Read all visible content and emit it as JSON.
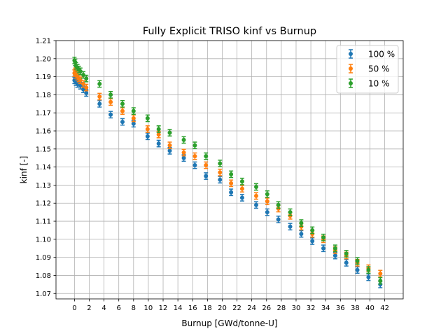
{
  "chart_data": {
    "type": "scatter",
    "title": "Fully Explicit TRISO kinf vs Burnup",
    "xlabel": "Burnup [GWd/tonne-U]",
    "ylabel": "kinf [-]",
    "xlim": [
      -2.5,
      44.5
    ],
    "ylim": [
      1.067,
      1.21
    ],
    "x_ticks": [
      0,
      2,
      4,
      6,
      8,
      10,
      12,
      14,
      16,
      18,
      20,
      22,
      24,
      26,
      28,
      30,
      32,
      34,
      36,
      38,
      40,
      42
    ],
    "y_ticks": [
      1.07,
      1.08,
      1.09,
      1.1,
      1.11,
      1.12,
      1.13,
      1.14,
      1.15,
      1.16,
      1.17,
      1.18,
      1.19,
      1.2,
      1.21
    ],
    "grid": true,
    "legend_position": "top-right",
    "error_bar_half_width": 0.0018,
    "series": [
      {
        "name": "100 %",
        "color": "#1f77b4",
        "x": [
          0,
          0.1,
          0.2,
          0.4,
          0.6,
          0.8,
          1.2,
          1.6,
          3.4,
          4.9,
          6.5,
          8.0,
          9.9,
          11.4,
          12.9,
          14.8,
          16.3,
          17.8,
          19.7,
          21.2,
          22.7,
          24.6,
          26.1,
          27.6,
          29.2,
          30.7,
          32.2,
          33.7,
          35.3,
          36.8,
          38.3,
          39.8,
          41.4
        ],
        "y": [
          1.188,
          1.189,
          1.187,
          1.186,
          1.187,
          1.185,
          1.183,
          1.181,
          1.175,
          1.169,
          1.165,
          1.164,
          1.157,
          1.153,
          1.149,
          1.145,
          1.141,
          1.135,
          1.133,
          1.126,
          1.123,
          1.119,
          1.115,
          1.111,
          1.107,
          1.103,
          1.099,
          1.095,
          1.091,
          1.087,
          1.083,
          1.079,
          1.075
        ]
      },
      {
        "name": "50 %",
        "color": "#ff7f0e",
        "x": [
          0,
          0.1,
          0.2,
          0.4,
          0.6,
          0.8,
          1.2,
          1.6,
          3.4,
          4.9,
          6.5,
          8.0,
          9.9,
          11.4,
          12.9,
          14.8,
          16.3,
          17.8,
          19.7,
          21.2,
          22.7,
          24.6,
          26.1,
          27.6,
          29.2,
          30.7,
          32.2,
          33.7,
          35.3,
          36.8,
          38.3,
          39.8,
          41.4
        ],
        "y": [
          1.192,
          1.193,
          1.191,
          1.19,
          1.189,
          1.188,
          1.186,
          1.184,
          1.179,
          1.176,
          1.171,
          1.167,
          1.161,
          1.158,
          1.152,
          1.148,
          1.146,
          1.141,
          1.137,
          1.131,
          1.128,
          1.124,
          1.121,
          1.117,
          1.113,
          1.107,
          1.103,
          1.1,
          1.094,
          1.091,
          1.087,
          1.084,
          1.081
        ]
      },
      {
        "name": "10 %",
        "color": "#2ca02c",
        "x": [
          0,
          0.1,
          0.2,
          0.4,
          0.6,
          0.8,
          1.2,
          1.6,
          3.4,
          4.9,
          6.5,
          8.0,
          9.9,
          11.4,
          12.9,
          14.8,
          16.3,
          17.8,
          19.7,
          21.2,
          22.7,
          24.6,
          26.1,
          27.6,
          29.2,
          30.7,
          32.2,
          33.7,
          35.3,
          36.8,
          38.3,
          39.8,
          41.4
        ],
        "y": [
          1.199,
          1.198,
          1.196,
          1.195,
          1.194,
          1.193,
          1.191,
          1.189,
          1.186,
          1.18,
          1.175,
          1.171,
          1.167,
          1.161,
          1.159,
          1.155,
          1.152,
          1.146,
          1.142,
          1.136,
          1.132,
          1.129,
          1.125,
          1.119,
          1.115,
          1.109,
          1.105,
          1.101,
          1.095,
          1.092,
          1.088,
          1.083,
          1.077
        ]
      }
    ]
  }
}
